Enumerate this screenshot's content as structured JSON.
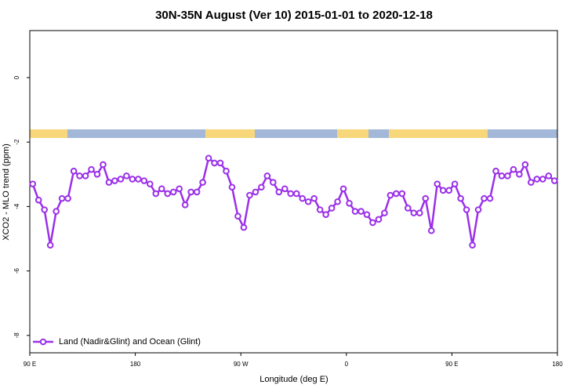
{
  "chart_data": {
    "type": "line",
    "title": "30N-35N August (Ver 10)   2015-01-01 to 2020-12-18",
    "x_label": "Longitude (deg E)",
    "y_label": "XCO2 - MLO trend (ppm)",
    "x": [
      92.5,
      97.5,
      102.5,
      107.5,
      112.5,
      117.5,
      122.5,
      127.5,
      132.5,
      137.5,
      142.5,
      147.5,
      152.5,
      157.5,
      162.5,
      167.5,
      172.5,
      177.5,
      182.5,
      187.5,
      192.5,
      197.5,
      202.5,
      207.5,
      212.5,
      217.5,
      222.5,
      227.5,
      232.5,
      237.5,
      242.5,
      247.5,
      252.5,
      257.5,
      262.5,
      267.5,
      272.5,
      277.5,
      282.5,
      287.5,
      292.5,
      297.5,
      302.5,
      307.5,
      312.5,
      317.5,
      322.5,
      327.5,
      332.5,
      337.5,
      342.5,
      347.5,
      352.5,
      357.5,
      362.5,
      367.5,
      372.5,
      377.5,
      382.5,
      387.5,
      392.5,
      397.5,
      402.5,
      407.5,
      412.5,
      417.5,
      422.5,
      427.5,
      432.5,
      437.5,
      442.5,
      447.5,
      452.5,
      457.5,
      462.5,
      467.5,
      472.5,
      477.5,
      482.5,
      487.5,
      492.5,
      497.5,
      502.5,
      507.5,
      512.5,
      517.5,
      522.5,
      527.5,
      532.5,
      537.5
    ],
    "series": [
      {
        "name": "Land (Nadir&Glint) and Ocean (Glint)",
        "color": "#9b30e8",
        "values": [
          -3.3,
          -3.8,
          -4.1,
          -5.2,
          -4.15,
          -3.75,
          -3.75,
          -2.9,
          -3.05,
          -3.05,
          -2.85,
          -3.0,
          -2.7,
          -3.25,
          -3.2,
          -3.15,
          -3.05,
          -3.15,
          -3.15,
          -3.2,
          -3.3,
          -3.6,
          -3.45,
          -3.6,
          -3.55,
          -3.45,
          -3.95,
          -3.55,
          -3.55,
          -3.25,
          -2.5,
          -2.65,
          -2.65,
          -2.9,
          -3.4,
          -4.3,
          -4.65,
          -3.65,
          -3.55,
          -3.4,
          -3.05,
          -3.25,
          -3.55,
          -3.45,
          -3.6,
          -3.6,
          -3.75,
          -3.85,
          -3.75,
          -4.1,
          -4.25,
          -4.05,
          -3.85,
          -3.45,
          -3.9,
          -4.15,
          -4.15,
          -4.25,
          -4.5,
          -4.4,
          -4.2,
          -3.65,
          -3.6,
          -3.6,
          -4.05,
          -4.2,
          -4.2,
          -3.75,
          -4.75,
          -3.3,
          -3.5,
          -3.5,
          -3.3,
          -3.75,
          -4.1,
          -5.2,
          -4.1,
          -3.75,
          -3.75,
          -2.9,
          -3.05,
          -3.05,
          -2.85,
          -3.0,
          -2.7,
          -3.25,
          -3.15,
          -3.15,
          -3.05,
          -3.2
        ]
      }
    ],
    "xlim": [
      90,
      540
    ],
    "xticks": [
      {
        "value": 90,
        "label": "90 E"
      },
      180,
      {
        "value": 270,
        "label": "90 W"
      },
      {
        "value": 360,
        "label": "0"
      },
      {
        "value": 450,
        "label": "90 E"
      },
      {
        "value": 540,
        "label": "180"
      }
    ],
    "ylim": [
      -8.54,
      1.46
    ],
    "yticks": [
      0,
      -2,
      -4,
      -6,
      -8
    ],
    "legend": "bottom-left"
  }
}
